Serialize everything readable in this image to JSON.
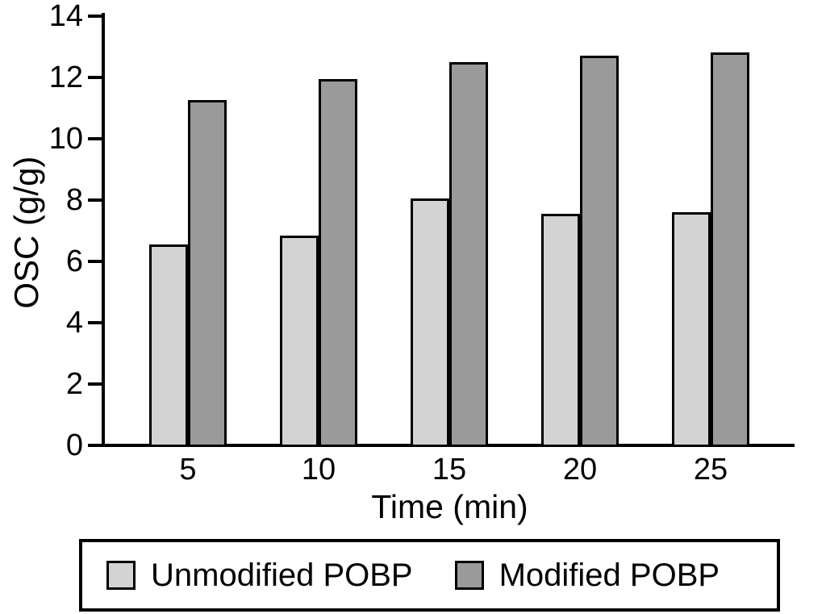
{
  "chart_data": {
    "type": "bar",
    "title": "",
    "xlabel": "Time (min)",
    "ylabel": "OSC (g/g)",
    "categories": [
      "5",
      "10",
      "15",
      "20",
      "25"
    ],
    "series": [
      {
        "name": "Unmodified POBP",
        "color": "#d3d3d3",
        "values": [
          6.5,
          6.8,
          8.0,
          7.5,
          7.55
        ]
      },
      {
        "name": "Modified POBP",
        "color": "#9a9a9a",
        "values": [
          11.2,
          11.9,
          12.45,
          12.65,
          12.75
        ]
      }
    ],
    "ylim": [
      0,
      14
    ],
    "yticks": [
      0,
      2,
      4,
      6,
      8,
      10,
      12,
      14
    ],
    "grid": false,
    "legend_position": "bottom-outside",
    "bar_edge_color": "#000000",
    "axis_color": "#000000",
    "background_color": "#ffffff"
  }
}
